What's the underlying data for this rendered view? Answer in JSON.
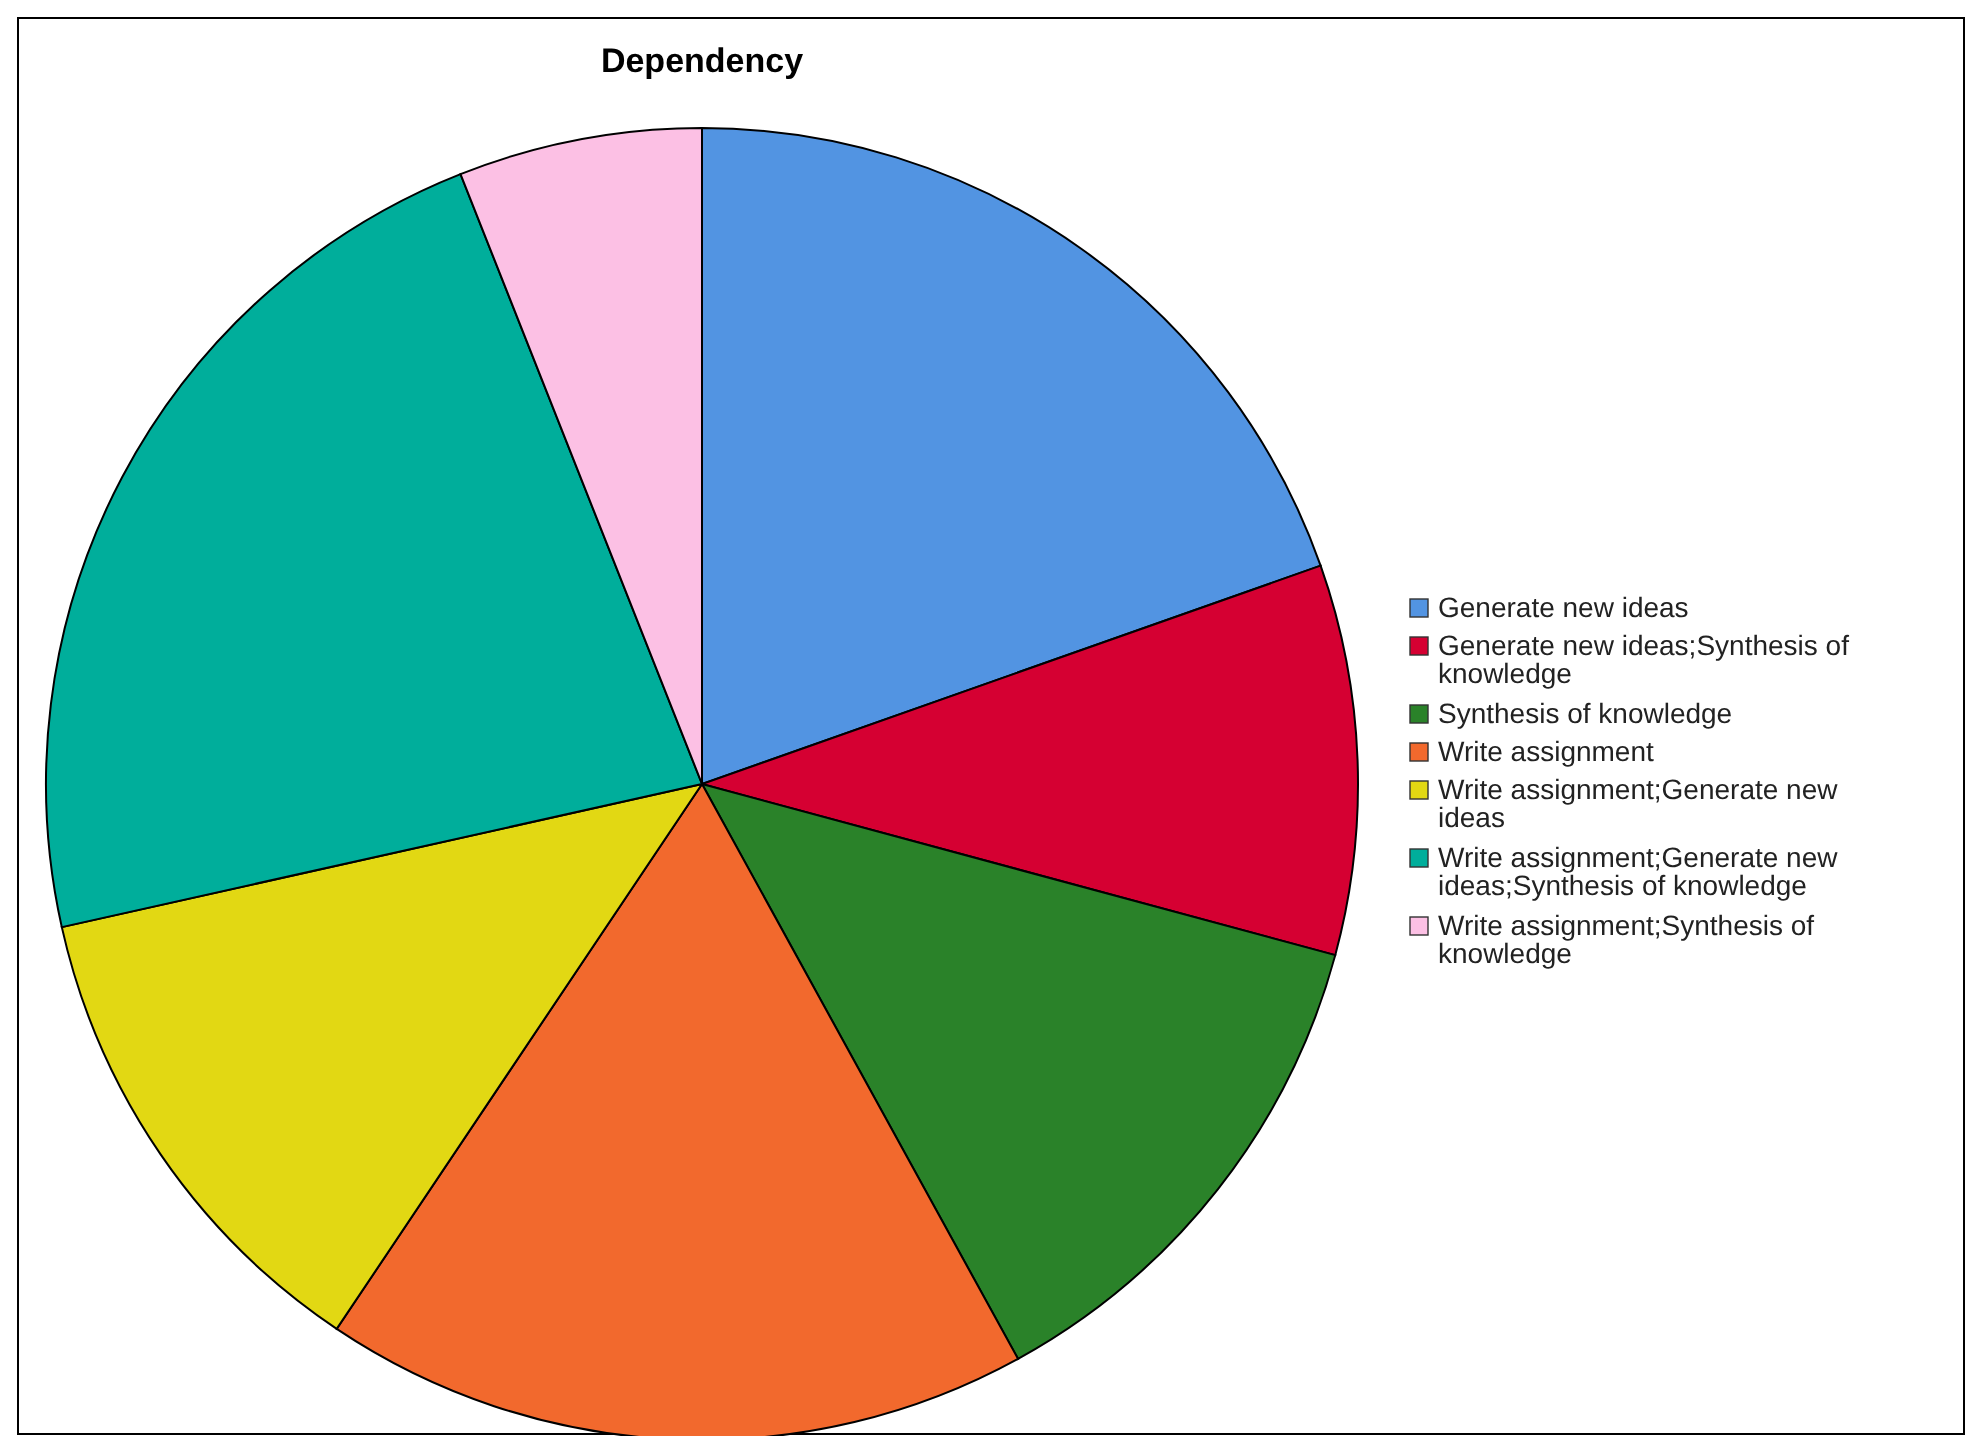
{
  "chart_data": {
    "type": "pie",
    "title": "Dependency",
    "categories": [
      "Generate new ideas",
      "Generate new ideas;Synthesis of knowledge",
      "Synthesis of knowledge",
      "Write assignment",
      "Write assignment;Generate new ideas",
      "Write assignment;Generate new ideas;Synthesis of knowledge",
      "Write assignment;Synthesis of knowledge"
    ],
    "values": [
      19.6,
      9.6,
      12.8,
      17.4,
      12.1,
      22.5,
      6.0
    ],
    "colors": [
      "#5294e2",
      "#d50032",
      "#2a8229",
      "#f2692d",
      "#e2d813",
      "#00ae9b",
      "#fcc0e4"
    ],
    "legend": "right"
  }
}
